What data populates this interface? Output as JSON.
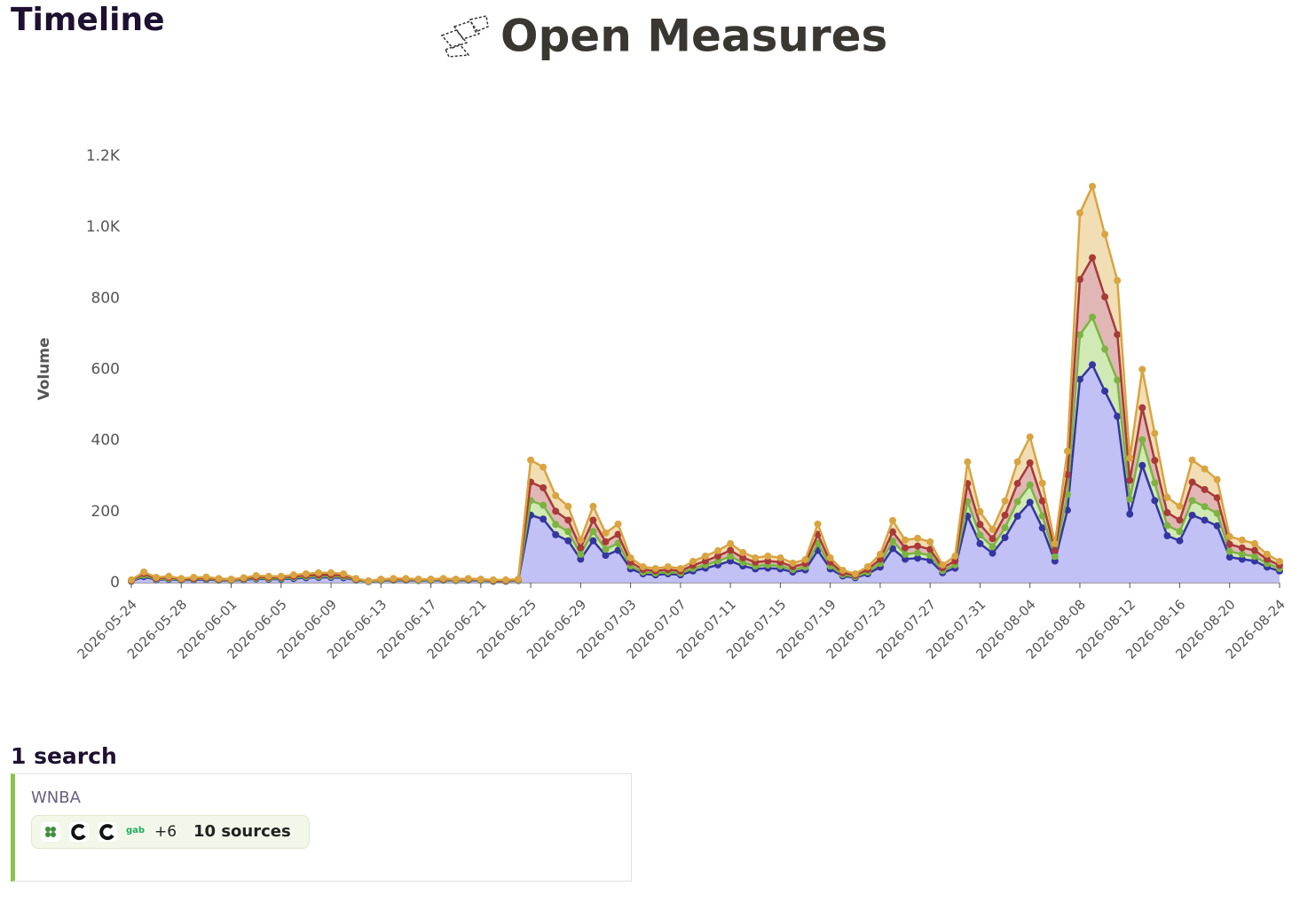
{
  "header": {
    "title": "Timeline",
    "brand": "Open Measures"
  },
  "chart_data": {
    "type": "stacked-area",
    "y_label": "Volume",
    "x": [
      "2026-05-24",
      "2026-05-25",
      "2026-05-26",
      "2026-05-27",
      "2026-05-28",
      "2026-05-29",
      "2026-05-30",
      "2026-05-31",
      "2026-06-01",
      "2026-06-02",
      "2026-06-03",
      "2026-06-04",
      "2026-06-05",
      "2026-06-06",
      "2026-06-07",
      "2026-06-08",
      "2026-06-09",
      "2026-06-10",
      "2026-06-11",
      "2026-06-12",
      "2026-06-13",
      "2026-06-14",
      "2026-06-15",
      "2026-06-16",
      "2026-06-17",
      "2026-06-18",
      "2026-06-19",
      "2026-06-20",
      "2026-06-21",
      "2026-06-22",
      "2026-06-23",
      "2026-06-24",
      "2026-06-25",
      "2026-06-26",
      "2026-06-27",
      "2026-06-28",
      "2026-06-29",
      "2026-06-30",
      "2026-07-01",
      "2026-07-02",
      "2026-07-03",
      "2026-07-04",
      "2026-07-05",
      "2026-07-06",
      "2026-07-07",
      "2026-07-08",
      "2026-07-09",
      "2026-07-10",
      "2026-07-11",
      "2026-07-12",
      "2026-07-13",
      "2026-07-14",
      "2026-07-15",
      "2026-07-16",
      "2026-07-17",
      "2026-07-18",
      "2026-07-19",
      "2026-07-20",
      "2026-07-21",
      "2026-07-22",
      "2026-07-23",
      "2026-07-24",
      "2026-07-25",
      "2026-07-26",
      "2026-07-27",
      "2026-07-28",
      "2026-07-29",
      "2026-07-30",
      "2026-07-31",
      "2026-08-01",
      "2026-08-02",
      "2026-08-03",
      "2026-08-04",
      "2026-08-05",
      "2026-08-06",
      "2026-08-07",
      "2026-08-08",
      "2026-08-09",
      "2026-08-10",
      "2026-08-11",
      "2026-08-12",
      "2026-08-13",
      "2026-08-14",
      "2026-08-15",
      "2026-08-16",
      "2026-08-17",
      "2026-08-18",
      "2026-08-19",
      "2026-08-20",
      "2026-08-21",
      "2026-08-22",
      "2026-08-23",
      "2026-08-24"
    ],
    "xticks": [
      "2026-05-24",
      "2026-05-28",
      "2026-06-01",
      "2026-06-05",
      "2026-06-09",
      "2026-06-13",
      "2026-06-17",
      "2026-06-21",
      "2026-06-25",
      "2026-06-29",
      "2026-07-03",
      "2026-07-07",
      "2026-07-11",
      "2026-07-15",
      "2026-07-19",
      "2026-07-23",
      "2026-07-27",
      "2026-07-31",
      "2026-08-04",
      "2026-08-08",
      "2026-08-12",
      "2026-08-16",
      "2026-08-20",
      "2026-08-24"
    ],
    "ylim": [
      0,
      1200
    ],
    "yticks": [
      0,
      200,
      400,
      600,
      800,
      {
        "value": 1000,
        "label": "1.0K"
      },
      {
        "value": 1200,
        "label": "1.2K"
      }
    ],
    "series": [
      {
        "color": "#3535a0",
        "fill": "#b6b6f4",
        "values": [
          4,
          17,
          8,
          10,
          7,
          8,
          9,
          7,
          6,
          8,
          11,
          10,
          10,
          12,
          14,
          15,
          15,
          14,
          7,
          3,
          6,
          7,
          7,
          6,
          6,
          7,
          6,
          7,
          6,
          4,
          4,
          6,
          190,
          179,
          135,
          118,
          66,
          118,
          77,
          91,
          39,
          25,
          22,
          25,
          22,
          33,
          41,
          50,
          61,
          47,
          39,
          41,
          39,
          30,
          36,
          91,
          39,
          19,
          14,
          25,
          44,
          96,
          66,
          69,
          63,
          28,
          41,
          187,
          110,
          83,
          127,
          187,
          226,
          154,
          61,
          204,
          572,
          613,
          539,
          468,
          193,
          330,
          231,
          132,
          118,
          190,
          176,
          160,
          72,
          66,
          61,
          44,
          33
        ]
      },
      {
        "color": "#7cb342",
        "fill": "#c9e5a8",
        "values": [
          1,
          4,
          2,
          2,
          1,
          2,
          2,
          1,
          1,
          2,
          2,
          2,
          2,
          3,
          3,
          3,
          3,
          3,
          1,
          1,
          1,
          1,
          1,
          1,
          1,
          1,
          1,
          1,
          1,
          1,
          1,
          1,
          41,
          39,
          29,
          26,
          14,
          26,
          17,
          20,
          8,
          5,
          5,
          5,
          5,
          7,
          9,
          11,
          13,
          10,
          8,
          9,
          8,
          7,
          8,
          20,
          8,
          4,
          3,
          5,
          10,
          21,
          14,
          15,
          14,
          6,
          9,
          41,
          24,
          18,
          28,
          41,
          49,
          34,
          13,
          44,
          125,
          134,
          118,
          102,
          42,
          72,
          50,
          29,
          26,
          41,
          38,
          35,
          16,
          14,
          13,
          10,
          7
        ]
      },
      {
        "color": "#a83a3a",
        "fill": "#dcaaa8",
        "values": [
          1,
          5,
          2,
          3,
          2,
          2,
          2,
          2,
          2,
          2,
          3,
          3,
          3,
          3,
          4,
          4,
          4,
          4,
          2,
          1,
          2,
          2,
          2,
          2,
          2,
          2,
          2,
          2,
          2,
          1,
          1,
          2,
          52,
          49,
          37,
          32,
          18,
          32,
          21,
          25,
          11,
          7,
          6,
          7,
          6,
          9,
          11,
          14,
          17,
          13,
          11,
          11,
          11,
          8,
          10,
          25,
          11,
          5,
          4,
          7,
          12,
          26,
          18,
          19,
          17,
          8,
          11,
          51,
          30,
          23,
          35,
          51,
          62,
          42,
          17,
          56,
          156,
          167,
          147,
          128,
          53,
          90,
          63,
          36,
          32,
          52,
          48,
          44,
          20,
          18,
          17,
          12,
          9
        ]
      },
      {
        "color": "#d9a441",
        "fill": "#efd8a8",
        "values": [
          2,
          4,
          3,
          3,
          2,
          3,
          3,
          2,
          1,
          2,
          4,
          3,
          3,
          4,
          4,
          6,
          6,
          4,
          2,
          0,
          1,
          2,
          2,
          1,
          1,
          2,
          1,
          2,
          1,
          2,
          2,
          1,
          62,
          58,
          44,
          39,
          22,
          39,
          25,
          29,
          12,
          8,
          7,
          8,
          7,
          11,
          14,
          15,
          19,
          15,
          12,
          14,
          12,
          10,
          11,
          29,
          12,
          7,
          4,
          8,
          14,
          32,
          22,
          22,
          21,
          8,
          14,
          61,
          36,
          26,
          40,
          61,
          73,
          50,
          19,
          66,
          187,
          201,
          176,
          152,
          62,
          108,
          76,
          43,
          39,
          62,
          58,
          51,
          22,
          22,
          19,
          14,
          11
        ]
      }
    ]
  },
  "searches": {
    "heading": "1 search",
    "items": [
      {
        "name": "WNBA",
        "icon_text": "gab",
        "more": "+6",
        "sources": "10 sources"
      }
    ]
  }
}
